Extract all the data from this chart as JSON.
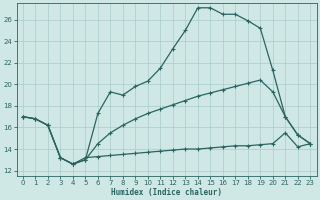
{
  "xlabel": "Humidex (Indice chaleur)",
  "bg_color": "#cfe8e5",
  "grid_color": "#a8cccb",
  "line_color": "#2a6460",
  "xlim": [
    -0.5,
    23.5
  ],
  "ylim": [
    11.5,
    27.5
  ],
  "xticks": [
    0,
    1,
    2,
    3,
    4,
    5,
    6,
    7,
    8,
    9,
    10,
    11,
    12,
    13,
    14,
    15,
    16,
    17,
    18,
    19,
    20,
    21,
    22,
    23
  ],
  "yticks": [
    12,
    14,
    16,
    18,
    20,
    22,
    24,
    26
  ],
  "curve1_x": [
    0,
    1,
    2,
    3,
    4,
    5,
    6,
    7,
    8,
    9,
    10,
    11,
    12,
    13,
    14,
    15,
    16,
    17,
    18,
    19,
    20,
    21,
    22,
    23
  ],
  "curve1_y": [
    17.0,
    16.8,
    16.2,
    13.2,
    12.6,
    13.0,
    17.3,
    19.3,
    19.0,
    19.8,
    20.3,
    21.5,
    23.3,
    25.0,
    27.1,
    27.1,
    26.5,
    26.5,
    25.9,
    25.2,
    21.3,
    17.0,
    15.3,
    14.5
  ],
  "curve2_x": [
    0,
    1,
    2,
    3,
    4,
    5,
    6,
    7,
    8,
    9,
    10,
    11,
    12,
    13,
    14,
    15,
    16,
    17,
    18,
    19,
    20,
    21,
    22,
    23
  ],
  "curve2_y": [
    17.0,
    16.8,
    16.2,
    13.2,
    12.6,
    13.0,
    14.5,
    15.5,
    16.2,
    16.8,
    17.3,
    17.7,
    18.1,
    18.5,
    18.9,
    19.2,
    19.5,
    19.8,
    20.1,
    20.4,
    19.3,
    17.0,
    15.3,
    14.5
  ],
  "curve3_x": [
    0,
    1,
    2,
    3,
    4,
    5,
    6,
    7,
    8,
    9,
    10,
    11,
    12,
    13,
    14,
    15,
    16,
    17,
    18,
    19,
    20,
    21,
    22,
    23
  ],
  "curve3_y": [
    17.0,
    16.8,
    16.2,
    13.2,
    12.6,
    13.2,
    13.3,
    13.4,
    13.5,
    13.6,
    13.7,
    13.8,
    13.9,
    14.0,
    14.0,
    14.1,
    14.2,
    14.3,
    14.3,
    14.4,
    14.5,
    15.5,
    14.2,
    14.5
  ]
}
